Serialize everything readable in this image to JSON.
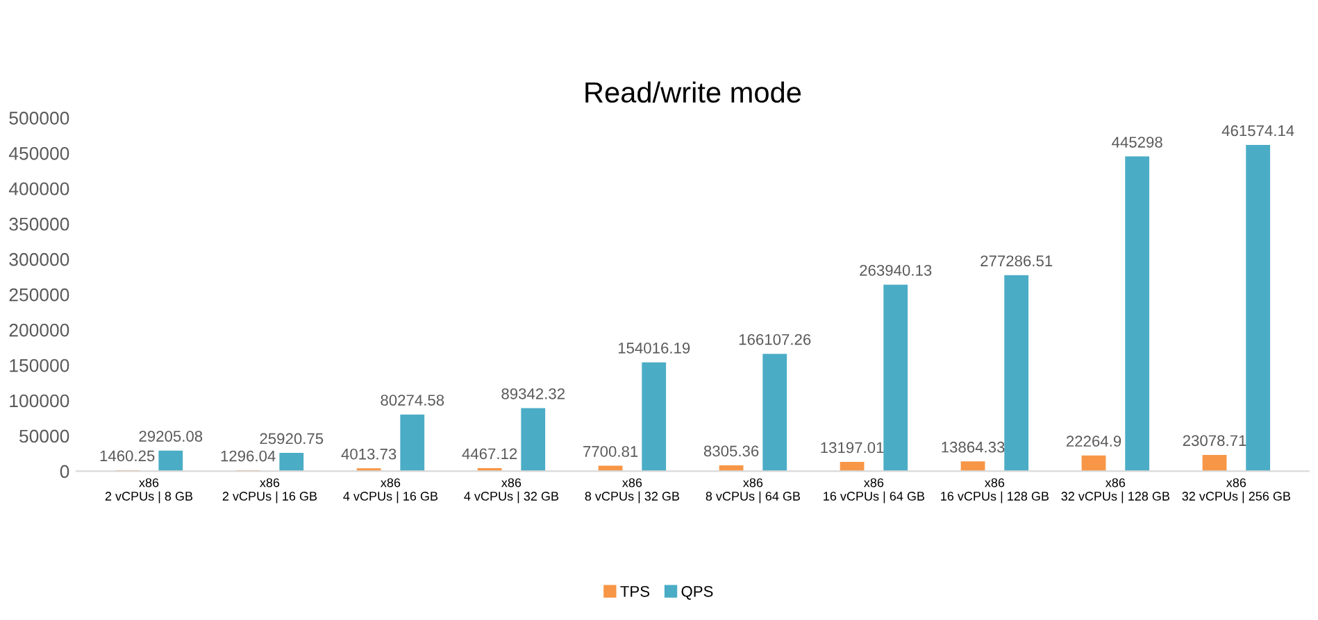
{
  "chart_data": {
    "type": "bar",
    "title": "Read/write mode",
    "categories": [
      "x86\n2 vCPUs | 8 GB",
      "x86\n2 vCPUs | 16 GB",
      "x86\n4 vCPUs | 16 GB",
      "x86\n4 vCPUs | 32 GB",
      "x86\n8 vCPUs | 32 GB",
      "x86\n8 vCPUs | 64 GB",
      "x86\n16 vCPUs | 64 GB",
      "x86\n16 vCPUs | 128 GB",
      "x86\n32 vCPUs | 128 GB",
      "x86\n32 vCPUs | 256 GB"
    ],
    "series": [
      {
        "name": "TPS",
        "color": "#f79646",
        "values": [
          1460.25,
          1296.04,
          4013.73,
          4467.12,
          7700.81,
          8305.36,
          13197.01,
          13864.33,
          22264.9,
          23078.71
        ]
      },
      {
        "name": "QPS",
        "color": "#4bacc6",
        "values": [
          29205.08,
          25920.75,
          80274.58,
          89342.32,
          154016.19,
          166107.26,
          263940.13,
          277286.51,
          445298,
          461574.14
        ]
      }
    ],
    "ylim": [
      0,
      500000
    ],
    "yticks": [
      0,
      50000,
      100000,
      150000,
      200000,
      250000,
      300000,
      350000,
      400000,
      450000,
      500000
    ],
    "grid": false,
    "legend": "bottom",
    "data_labels": true
  }
}
